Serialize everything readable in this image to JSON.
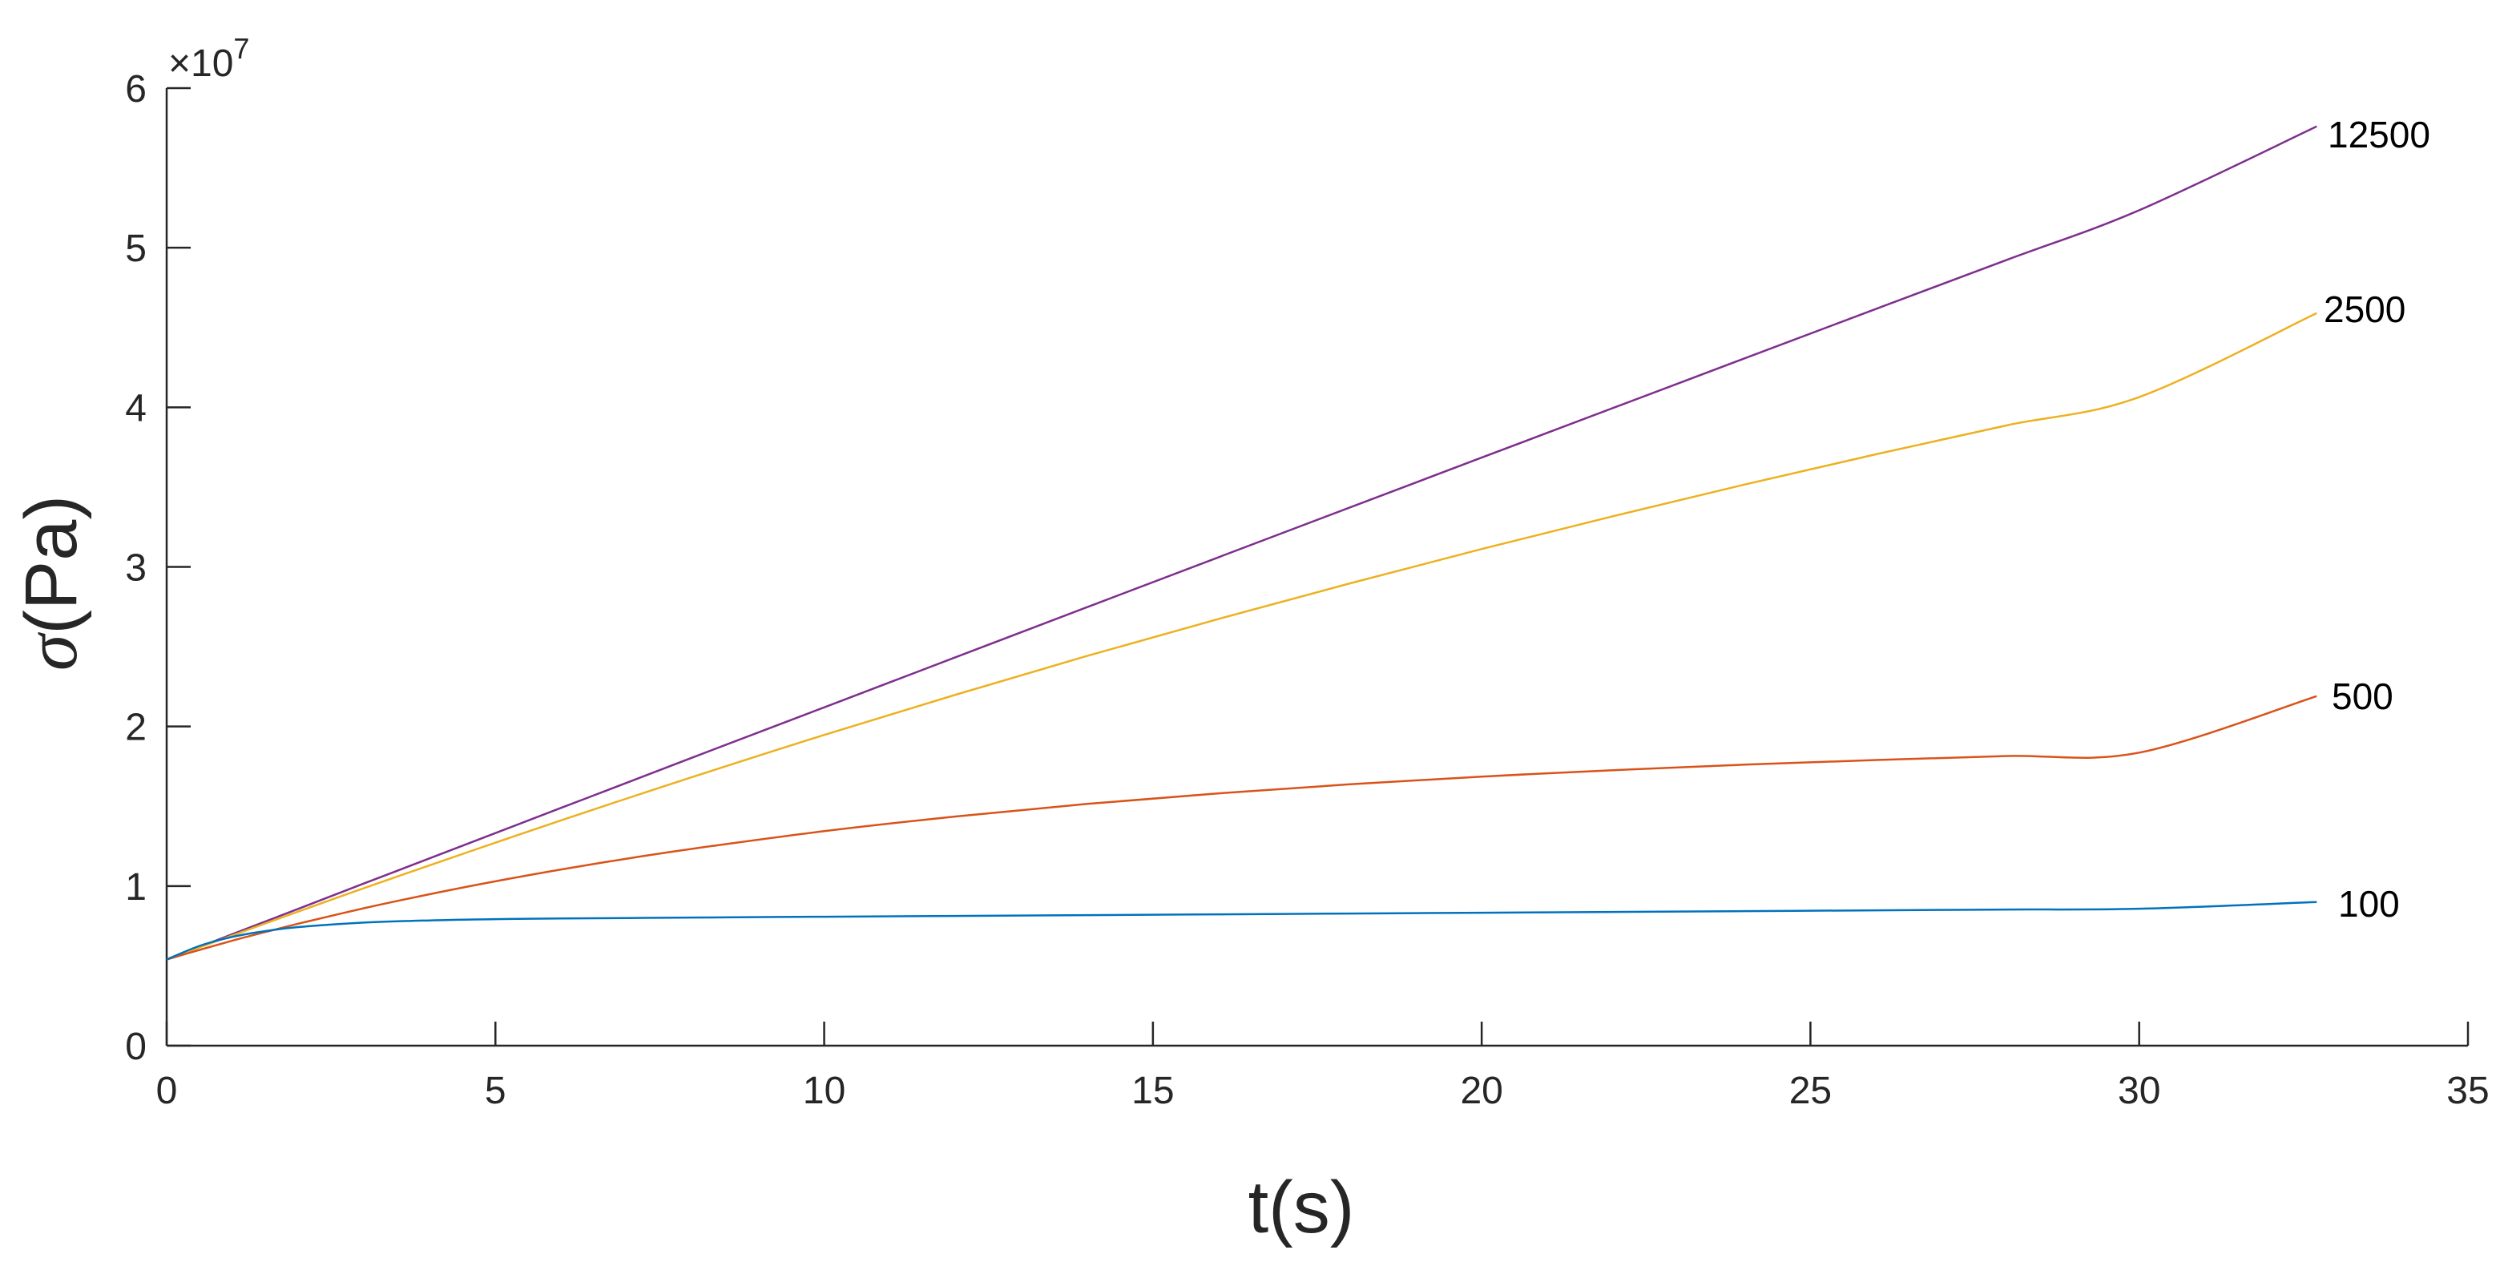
{
  "chart_data": {
    "type": "line",
    "xlabel": "t(s)",
    "ylabel_symbol": "σ",
    "ylabel_unit": "(Pa)",
    "y_exponent_prefix": "×10",
    "y_exponent_power": "7",
    "xlim": [
      0,
      35
    ],
    "ylim": [
      0,
      6
    ],
    "y_scale_factor": 10000000,
    "x_ticks": [
      "0",
      "5",
      "10",
      "15",
      "20",
      "25",
      "30",
      "35"
    ],
    "y_ticks": [
      "0",
      "1",
      "2",
      "3",
      "4",
      "5",
      "6"
    ],
    "grid": false,
    "x": [
      0,
      0.5,
      1,
      1.5,
      2,
      3,
      4,
      5,
      6,
      7,
      8,
      10,
      12,
      14,
      16,
      18,
      20,
      22,
      24,
      26,
      28,
      30,
      32.7
    ],
    "series": [
      {
        "label": "12500",
        "color": "#7E2F8E",
        "values": [
          0.54,
          0.619,
          0.699,
          0.778,
          0.857,
          1.016,
          1.174,
          1.332,
          1.49,
          1.648,
          1.806,
          2.12,
          2.434,
          2.748,
          3.061,
          3.373,
          3.685,
          3.996,
          4.307,
          4.617,
          4.926,
          5.235,
          5.76
        ]
      },
      {
        "label": "2500",
        "color": "#EDB120",
        "values": [
          0.54,
          0.616,
          0.691,
          0.766,
          0.84,
          0.987,
          1.13,
          1.272,
          1.412,
          1.549,
          1.684,
          1.947,
          2.199,
          2.442,
          2.674,
          2.897,
          3.112,
          3.318,
          3.516,
          3.706,
          3.888,
          4.064,
          4.59
        ]
      },
      {
        "label": "500",
        "color": "#D95319",
        "values": [
          0.54,
          0.6,
          0.658,
          0.712,
          0.764,
          0.861,
          0.949,
          1.03,
          1.104,
          1.172,
          1.234,
          1.344,
          1.436,
          1.515,
          1.581,
          1.638,
          1.686,
          1.726,
          1.761,
          1.79,
          1.815,
          1.836,
          2.19
        ]
      },
      {
        "label": "100",
        "color": "#0072BD",
        "values": [
          0.54,
          0.625,
          0.682,
          0.718,
          0.743,
          0.771,
          0.785,
          0.793,
          0.797,
          0.8,
          0.803,
          0.808,
          0.813,
          0.818,
          0.823,
          0.828,
          0.833,
          0.838,
          0.843,
          0.848,
          0.853,
          0.858,
          0.9
        ]
      }
    ]
  }
}
